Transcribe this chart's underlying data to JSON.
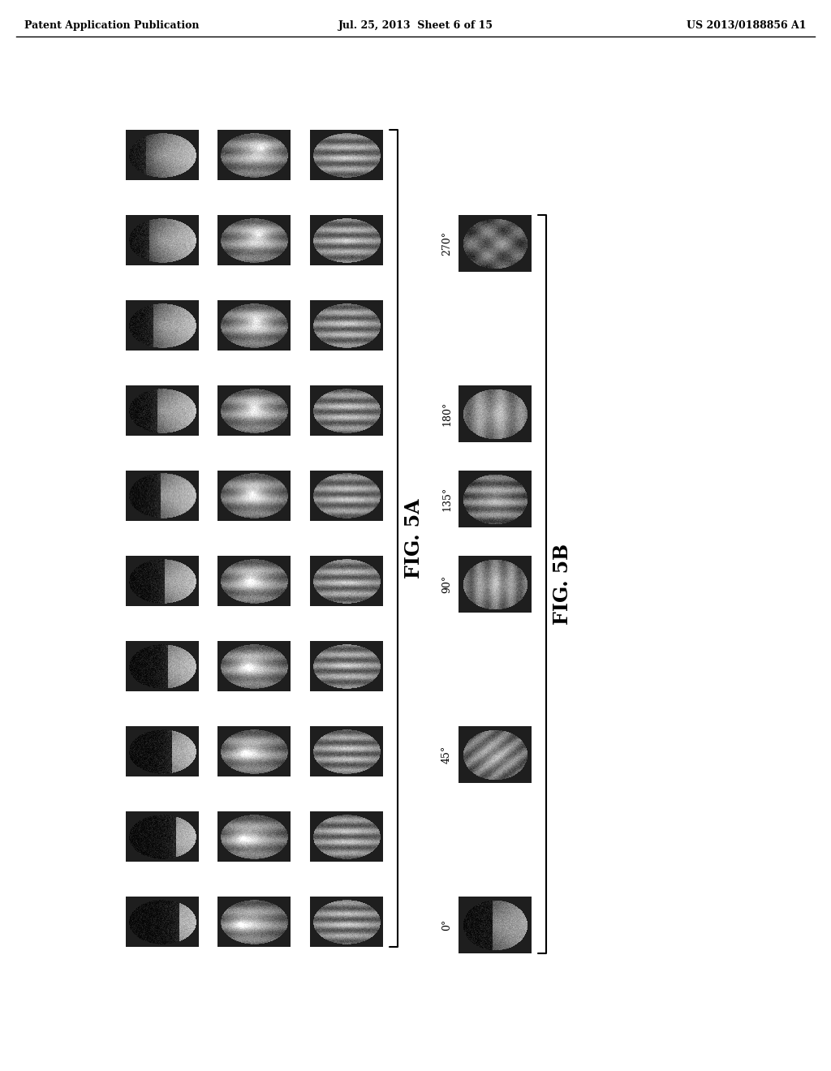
{
  "title_left": "Patent Application Publication",
  "title_center": "Jul. 25, 2013  Sheet 6 of 15",
  "title_right": "US 2013/0188856 A1",
  "fig5a_label": "FIG. 5A",
  "fig5b_label": "FIG. 5B",
  "fig5b_angles": [
    "270°",
    "180°",
    "135°",
    "90°",
    "45°",
    "0°"
  ],
  "n_rows_5a": 10,
  "n_cols_5a": 3,
  "bg_color": "#ffffff",
  "header_fontsize": 10,
  "label_fontsize": 18
}
